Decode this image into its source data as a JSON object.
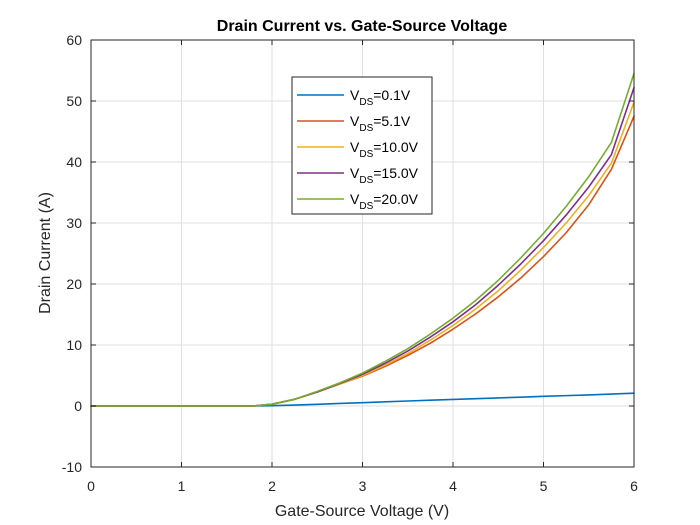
{
  "chart_data": {
    "type": "line",
    "title": "Drain Current vs. Gate-Source Voltage",
    "xlabel": "Gate-Source Voltage (V)",
    "ylabel": "Drain Current (A)",
    "xlim": [
      0,
      6
    ],
    "ylim": [
      -10,
      60
    ],
    "xticks": [
      0,
      1,
      2,
      3,
      4,
      5,
      6
    ],
    "yticks": [
      -10,
      0,
      10,
      20,
      30,
      40,
      50,
      60
    ],
    "grid": true,
    "legend_position": "top-center",
    "x": [
      0,
      1.0,
      1.8,
      2.0,
      2.25,
      2.5,
      2.75,
      3.0,
      3.25,
      3.5,
      3.75,
      4.0,
      4.25,
      4.5,
      4.75,
      5.0,
      5.25,
      5.5,
      5.75,
      6.0
    ],
    "series": [
      {
        "legend_prefix": "V",
        "legend_sub": "DS",
        "legend_suffix": "=0.1V",
        "color": "#0072BD",
        "values": [
          0,
          0,
          0,
          0.05,
          0.15,
          0.28,
          0.42,
          0.55,
          0.68,
          0.82,
          0.95,
          1.08,
          1.2,
          1.33,
          1.45,
          1.58,
          1.7,
          1.82,
          1.95,
          2.1
        ]
      },
      {
        "legend_prefix": "V",
        "legend_sub": "DS",
        "legend_suffix": "=5.1V",
        "color": "#D95319",
        "values": [
          0,
          0,
          0,
          0.3,
          1.1,
          2.3,
          3.6,
          4.9,
          6.5,
          8.3,
          10.3,
          12.6,
          15.1,
          17.9,
          21.0,
          24.5,
          28.4,
          33.0,
          38.8,
          47.5
        ]
      },
      {
        "legend_prefix": "V",
        "legend_sub": "DS",
        "legend_suffix": "=10.0V",
        "color": "#EDB120",
        "values": [
          0,
          0,
          0,
          0.3,
          1.1,
          2.3,
          3.6,
          5.0,
          6.7,
          8.6,
          10.8,
          13.2,
          15.9,
          18.9,
          22.3,
          26.0,
          30.0,
          34.5,
          39.8,
          49.8
        ]
      },
      {
        "legend_prefix": "V",
        "legend_sub": "DS",
        "legend_suffix": "=15.0V",
        "color": "#7E2F8E",
        "values": [
          0,
          0,
          0,
          0.3,
          1.1,
          2.3,
          3.7,
          5.2,
          7.0,
          9.0,
          11.3,
          13.8,
          16.6,
          19.8,
          23.3,
          27.1,
          31.3,
          35.9,
          41.2,
          52.2
        ]
      },
      {
        "legend_prefix": "V",
        "legend_sub": "DS",
        "legend_suffix": "=20.0V",
        "color": "#77AC30",
        "values": [
          0,
          0,
          0,
          0.3,
          1.1,
          2.4,
          3.8,
          5.4,
          7.3,
          9.4,
          11.8,
          14.4,
          17.3,
          20.6,
          24.3,
          28.3,
          32.7,
          37.6,
          43.2,
          54.5
        ]
      }
    ]
  }
}
